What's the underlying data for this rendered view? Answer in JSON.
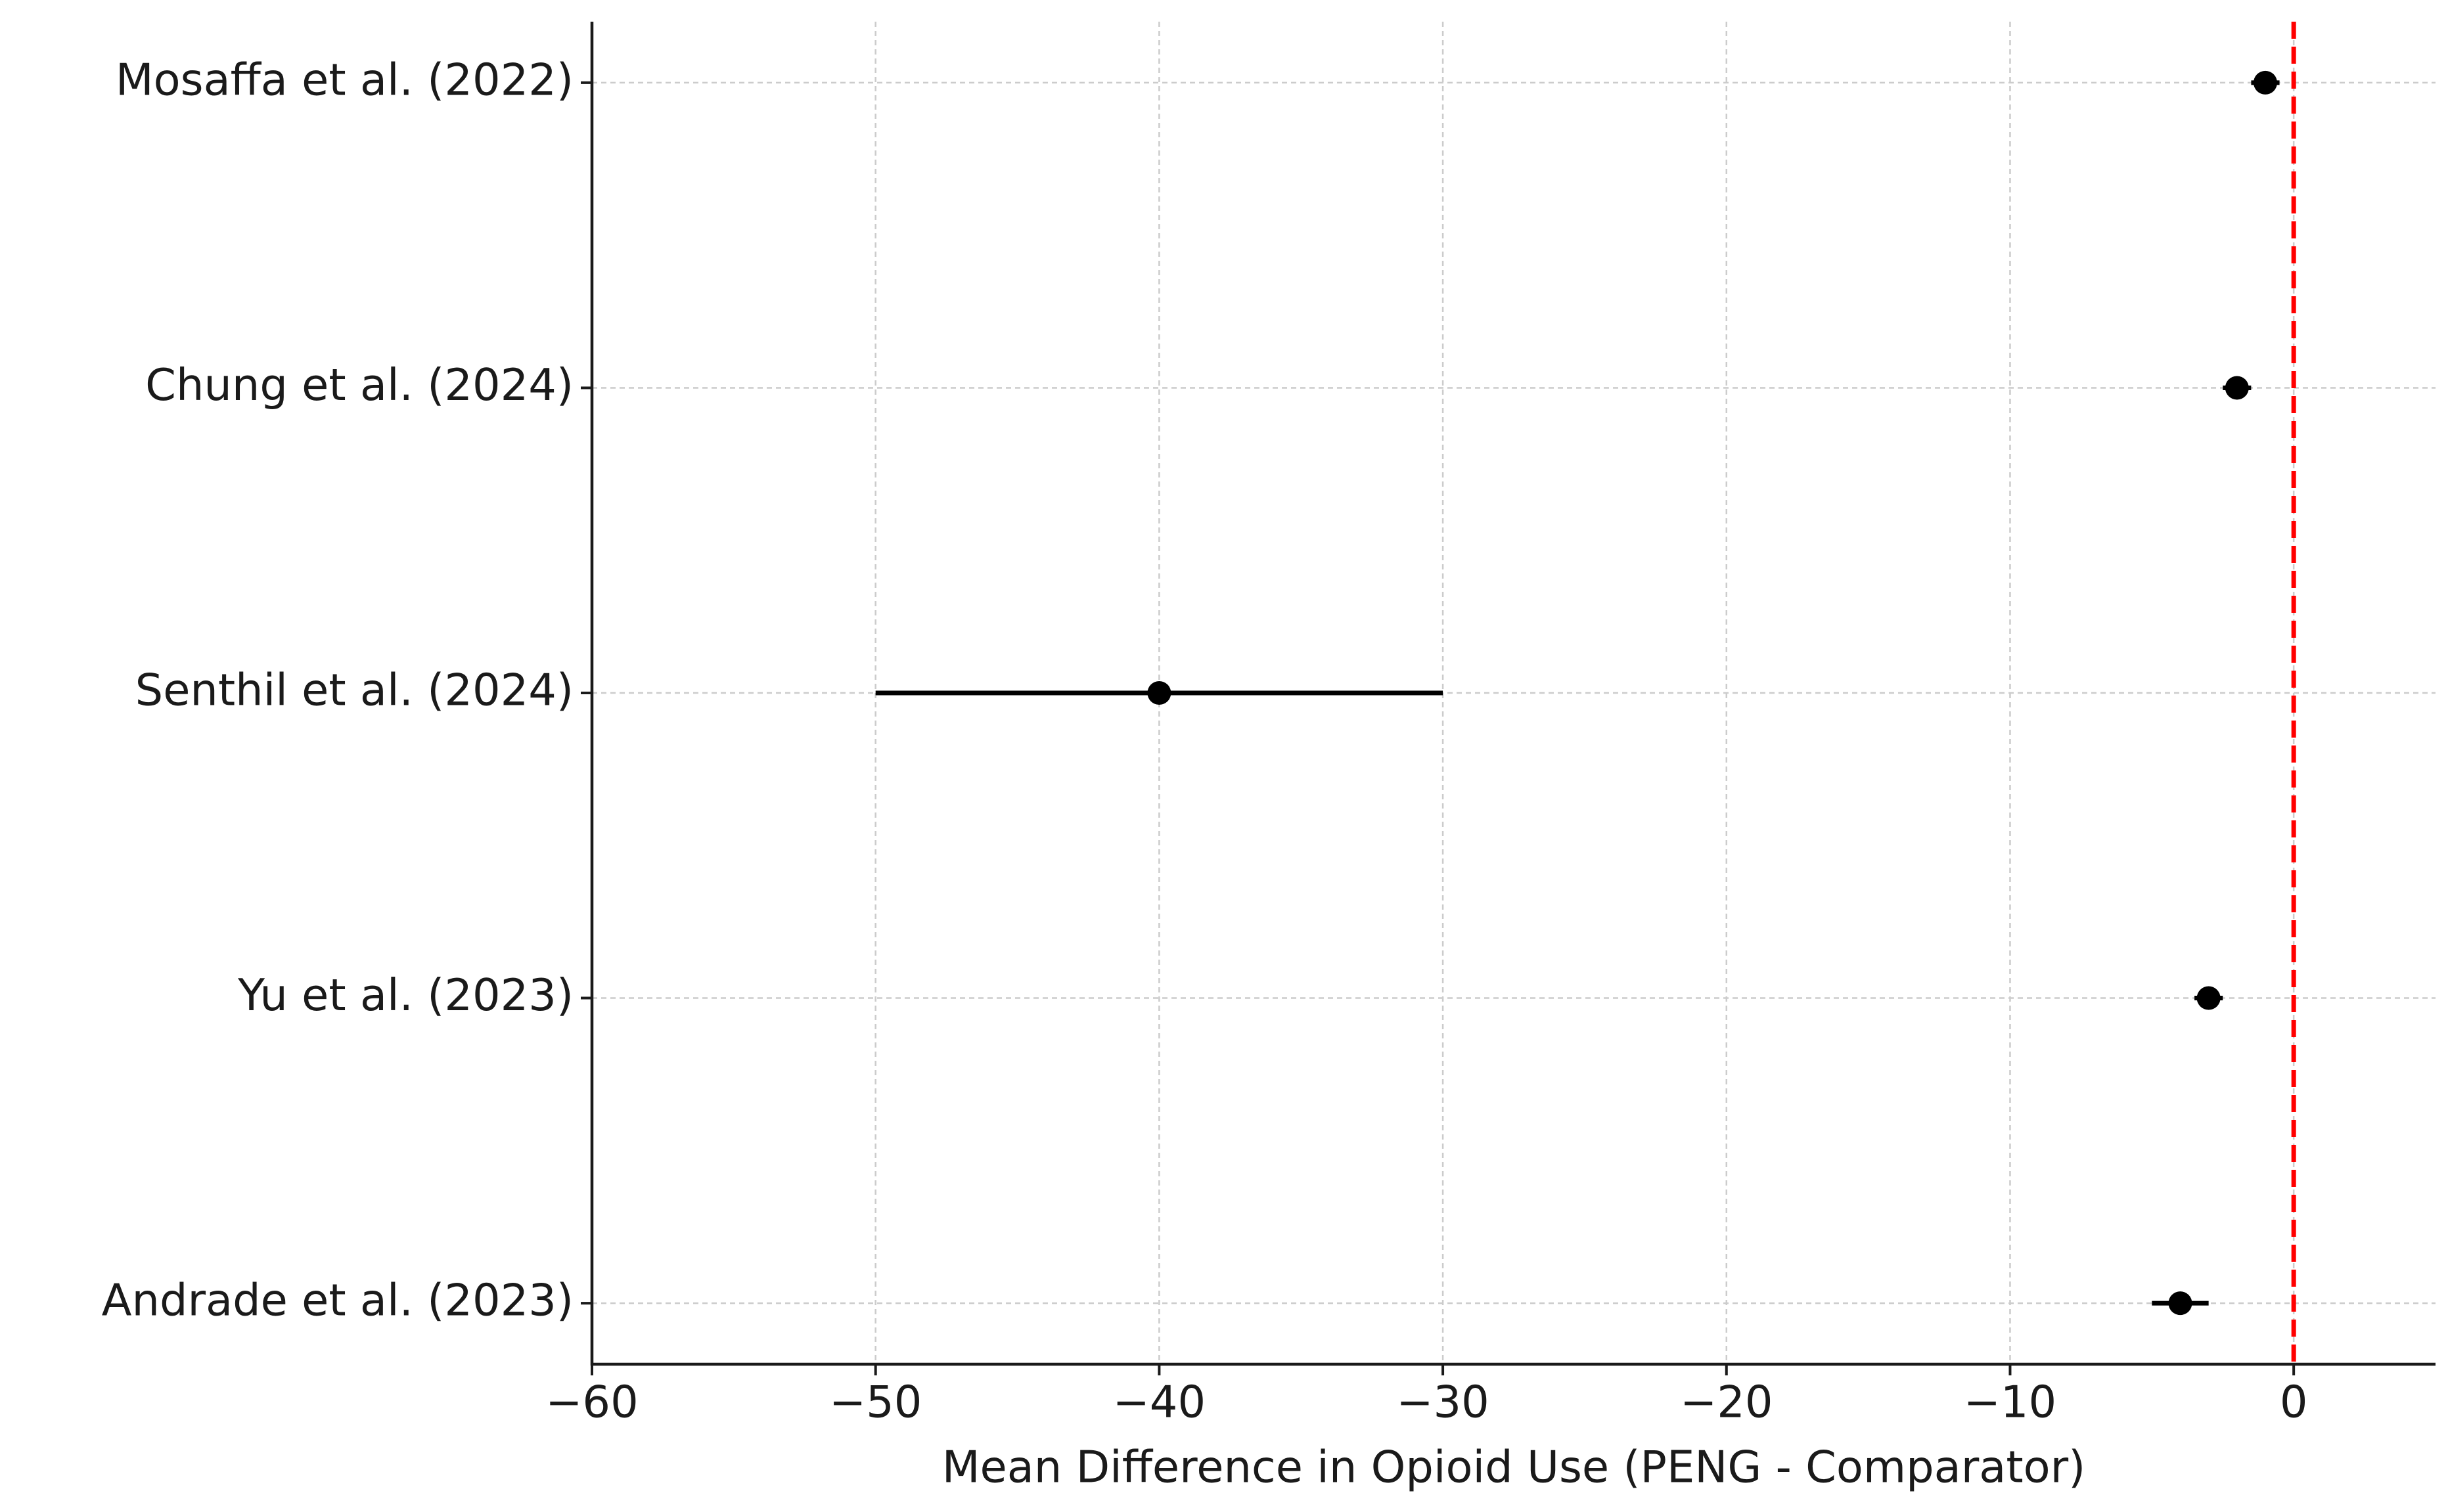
{
  "chart_data": {
    "type": "forest",
    "xlabel": "Mean Difference in Opioid Use (PENG - Comparator)",
    "categories": [
      "Mosaffa et al. (2022)",
      "Chung et al. (2024)",
      "Senthil et al. (2024)",
      "Yu et al. (2023)",
      "Andrade et al. (2023)"
    ],
    "values": [
      -1,
      -2,
      -40,
      -3,
      -4
    ],
    "errors": [
      0.5,
      0.5,
      10,
      0.5,
      1
    ],
    "color": "#000000",
    "xlim": [
      -60,
      5
    ],
    "xticks": [
      {
        "value": -60,
        "label": "−60"
      },
      {
        "value": -50,
        "label": "−50"
      },
      {
        "value": -40,
        "label": "−40"
      },
      {
        "value": -30,
        "label": "−30"
      },
      {
        "value": -20,
        "label": "−20"
      },
      {
        "value": -10,
        "label": "−10"
      },
      0
    ],
    "reference_line": 0,
    "reference_color": "#ff0000",
    "grid": true
  }
}
